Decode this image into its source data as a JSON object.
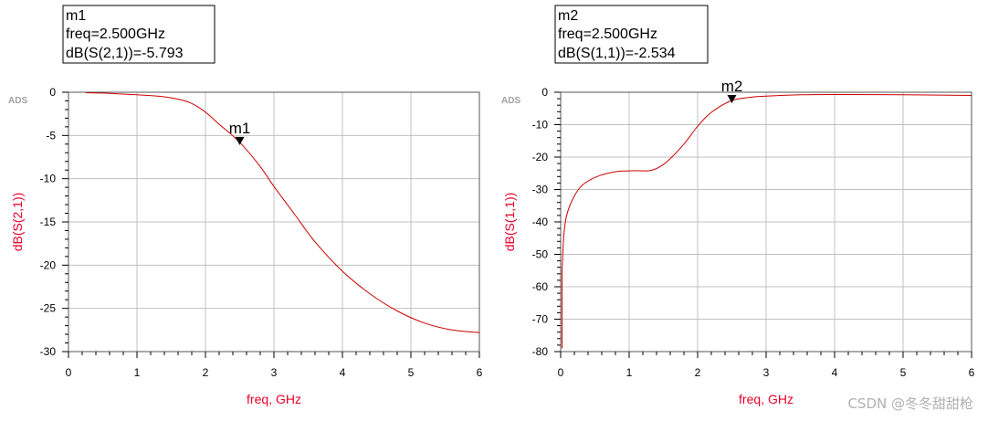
{
  "watermark": "CSDN @冬冬甜甜枪",
  "chart_data": [
    {
      "type": "line",
      "logo": "ADS",
      "xlabel": "freq, GHz",
      "ylabel": "dB(S(2,1))",
      "xlim": [
        0,
        6
      ],
      "ylim": [
        -30,
        0
      ],
      "xticks": [
        "0",
        "1",
        "2",
        "3",
        "4",
        "5",
        "6"
      ],
      "yticks": [
        "0",
        "-5",
        "-10",
        "-15",
        "-20",
        "-25",
        "-30"
      ],
      "grid": true,
      "series": [
        {
          "color": "#cc0000",
          "x": [
            0.25,
            0.5,
            1.0,
            1.3,
            1.6,
            1.8,
            2.0,
            2.2,
            2.5,
            2.8,
            3.0,
            3.3,
            3.6,
            4.0,
            4.4,
            4.8,
            5.2,
            5.6,
            6.0
          ],
          "y": [
            -0.05,
            -0.1,
            -0.3,
            -0.45,
            -0.8,
            -1.3,
            -2.3,
            -3.7,
            -5.793,
            -8.6,
            -10.9,
            -14.1,
            -17.3,
            -20.7,
            -23.3,
            -25.3,
            -26.7,
            -27.5,
            -27.8
          ]
        }
      ],
      "marker": {
        "name": "m1",
        "freq": 2.5,
        "value": -5.793,
        "lines": [
          "m1",
          "freq=2.500GHz",
          "dB(S(2,1))=-5.793"
        ]
      }
    },
    {
      "type": "line",
      "logo": "ADS",
      "xlabel": "freq, GHz",
      "ylabel": "dB(S(1,1))",
      "xlim": [
        0,
        6
      ],
      "ylim": [
        -80,
        0
      ],
      "xticks": [
        "0",
        "1",
        "2",
        "3",
        "4",
        "5",
        "6"
      ],
      "yticks": [
        "0",
        "-10",
        "-20",
        "-30",
        "-40",
        "-50",
        "-60",
        "-70",
        "-80"
      ],
      "grid": true,
      "series": [
        {
          "color": "#cc0000",
          "x": [
            0.02,
            0.05,
            0.1,
            0.2,
            0.3,
            0.45,
            0.6,
            0.75,
            0.9,
            1.1,
            1.3,
            1.45,
            1.6,
            1.8,
            2.0,
            2.2,
            2.5,
            2.8,
            3.0,
            3.5,
            4.0,
            5.0,
            6.0
          ],
          "y": [
            -55.0,
            -43.0,
            -37.0,
            -32.0,
            -29.0,
            -26.8,
            -25.5,
            -24.7,
            -24.3,
            -24.2,
            -24.2,
            -23.0,
            -20.5,
            -16.0,
            -10.5,
            -6.2,
            -2.534,
            -1.5,
            -1.2,
            -0.8,
            -0.7,
            -0.8,
            -1.0
          ]
        }
      ],
      "marker": {
        "name": "m2",
        "freq": 2.5,
        "value": -2.534,
        "lines": [
          "m2",
          "freq=2.500GHz",
          "dB(S(1,1))=-2.534"
        ]
      }
    }
  ]
}
